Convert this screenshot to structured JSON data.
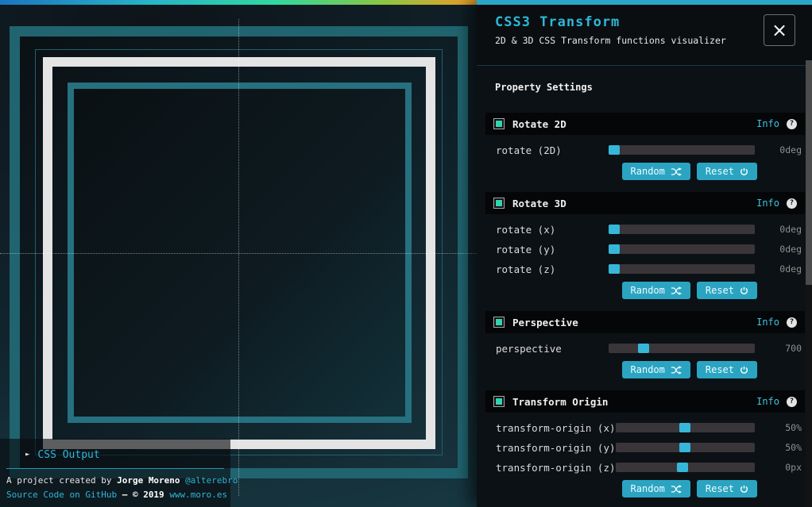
{
  "colors": {
    "accent": "#2fb7d9",
    "button": "#2ba4c2",
    "checkbox_check": "#35d2af",
    "slider_handle": "#36b7da",
    "slider_track": "#393539",
    "panel_top_border": "#29a7c7",
    "frame_teal": "#20646f",
    "frame_white": "#e4e4e4",
    "top_gradient": [
      "#1b76c0",
      "#28b5c7",
      "#30d9a0",
      "#8ac643",
      "#dfa32b"
    ]
  },
  "header": {
    "title": "CSS3 Transform",
    "subtitle": "2D & 3D CSS Transform functions visualizer",
    "close_glyph": "×"
  },
  "labels": {
    "settings_title": "Property Settings",
    "info": "Info",
    "qmark": "?",
    "random": "Random",
    "reset": "Reset"
  },
  "sections": [
    {
      "title": "Rotate 2D",
      "enabled": true,
      "sliders": [
        {
          "label": "rotate (2D)",
          "value": "0deg",
          "percent": 0
        }
      ]
    },
    {
      "title": "Rotate 3D",
      "enabled": true,
      "sliders": [
        {
          "label": "rotate (x)",
          "value": "0deg",
          "percent": 0
        },
        {
          "label": "rotate (y)",
          "value": "0deg",
          "percent": 0
        },
        {
          "label": "rotate (z)",
          "value": "0deg",
          "percent": 0
        }
      ]
    },
    {
      "title": "Perspective",
      "enabled": true,
      "sliders": [
        {
          "label": "perspective",
          "value": "700",
          "percent": 22
        }
      ]
    },
    {
      "title": "Transform Origin",
      "enabled": true,
      "sliders": [
        {
          "label": "transform-origin (x)",
          "value": "50%",
          "percent": 50
        },
        {
          "label": "transform-origin (y)",
          "value": "50%",
          "percent": 50
        },
        {
          "label": "transform-origin (z)",
          "value": "0px",
          "percent": 48
        }
      ]
    }
  ],
  "output_panel": {
    "toggle_glyph": "►",
    "title": "CSS Output"
  },
  "footer": {
    "credit_prefix": "A project created by ",
    "author": "Jorge Moreno",
    "handle": " @alterebro",
    "source_link": "Source Code on GitHub",
    "separator": " — © 2019 ",
    "site": "www.moro.es"
  }
}
